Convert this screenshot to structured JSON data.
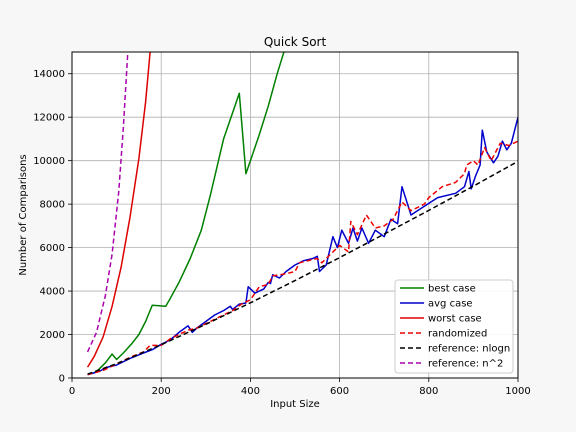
{
  "chart_data": {
    "type": "line",
    "title": "Quick Sort",
    "xlabel": "Input Size",
    "ylabel": "Number of Comparisons",
    "xlim": [
      0,
      1000
    ],
    "ylim": [
      0,
      15000
    ],
    "xticks": [
      0,
      200,
      400,
      600,
      800,
      1000
    ],
    "yticks": [
      0,
      2000,
      4000,
      6000,
      8000,
      10000,
      12000,
      14000
    ],
    "grid": true,
    "legend_position": "bottom-right",
    "series": [
      {
        "name": "best case",
        "color": "#008000",
        "dash": "solid",
        "points": [
          [
            35,
            150
          ],
          [
            50,
            250
          ],
          [
            60,
            400
          ],
          [
            75,
            700
          ],
          [
            90,
            1100
          ],
          [
            100,
            850
          ],
          [
            115,
            1150
          ],
          [
            135,
            1600
          ],
          [
            150,
            2000
          ],
          [
            165,
            2600
          ],
          [
            180,
            3350
          ],
          [
            210,
            3300
          ],
          [
            220,
            3650
          ],
          [
            240,
            4400
          ],
          [
            265,
            5500
          ],
          [
            290,
            6800
          ],
          [
            310,
            8400
          ],
          [
            340,
            11000
          ],
          [
            375,
            13100
          ],
          [
            390,
            9400
          ],
          [
            400,
            10000
          ],
          [
            420,
            11200
          ],
          [
            440,
            12500
          ],
          [
            460,
            14000
          ],
          [
            475,
            15000
          ]
        ]
      },
      {
        "name": "avg case",
        "color": "#0000cc",
        "dash": "solid",
        "points": [
          [
            35,
            150
          ],
          [
            60,
            300
          ],
          [
            80,
            500
          ],
          [
            100,
            600
          ],
          [
            130,
            900
          ],
          [
            160,
            1150
          ],
          [
            180,
            1300
          ],
          [
            200,
            1550
          ],
          [
            220,
            1750
          ],
          [
            240,
            2100
          ],
          [
            260,
            2400
          ],
          [
            270,
            2100
          ],
          [
            280,
            2300
          ],
          [
            300,
            2600
          ],
          [
            320,
            2900
          ],
          [
            340,
            3100
          ],
          [
            355,
            3300
          ],
          [
            360,
            3150
          ],
          [
            375,
            3400
          ],
          [
            390,
            3450
          ],
          [
            395,
            4200
          ],
          [
            410,
            3900
          ],
          [
            420,
            4000
          ],
          [
            430,
            4100
          ],
          [
            440,
            4400
          ],
          [
            445,
            4350
          ],
          [
            450,
            4750
          ],
          [
            465,
            4600
          ],
          [
            480,
            4900
          ],
          [
            500,
            5200
          ],
          [
            520,
            5400
          ],
          [
            540,
            5500
          ],
          [
            550,
            5600
          ],
          [
            555,
            4900
          ],
          [
            570,
            5200
          ],
          [
            585,
            6500
          ],
          [
            595,
            6000
          ],
          [
            605,
            6800
          ],
          [
            620,
            6200
          ],
          [
            630,
            6900
          ],
          [
            640,
            6300
          ],
          [
            650,
            6900
          ],
          [
            665,
            6200
          ],
          [
            680,
            6800
          ],
          [
            700,
            6500
          ],
          [
            715,
            7300
          ],
          [
            730,
            7100
          ],
          [
            740,
            8800
          ],
          [
            760,
            7500
          ],
          [
            790,
            7900
          ],
          [
            820,
            8300
          ],
          [
            860,
            8500
          ],
          [
            880,
            8800
          ],
          [
            890,
            9500
          ],
          [
            895,
            8700
          ],
          [
            905,
            9300
          ],
          [
            915,
            9800
          ],
          [
            920,
            11400
          ],
          [
            930,
            10400
          ],
          [
            945,
            9900
          ],
          [
            955,
            10200
          ],
          [
            965,
            10900
          ],
          [
            975,
            10500
          ],
          [
            985,
            10800
          ],
          [
            1000,
            12000
          ]
        ]
      },
      {
        "name": "worst case",
        "color": "#dd0000",
        "dash": "solid",
        "points": [
          [
            35,
            500
          ],
          [
            50,
            1000
          ],
          [
            70,
            1900
          ],
          [
            90,
            3300
          ],
          [
            110,
            5100
          ],
          [
            130,
            7400
          ],
          [
            150,
            10100
          ],
          [
            165,
            12700
          ],
          [
            175,
            15000
          ]
        ]
      },
      {
        "name": "randomized",
        "color": "#ee0000",
        "dash": "dashed",
        "points": [
          [
            35,
            160
          ],
          [
            70,
            350
          ],
          [
            100,
            650
          ],
          [
            130,
            950
          ],
          [
            160,
            1200
          ],
          [
            175,
            1500
          ],
          [
            200,
            1500
          ],
          [
            220,
            1800
          ],
          [
            260,
            2200
          ],
          [
            280,
            2300
          ],
          [
            300,
            2500
          ],
          [
            330,
            2800
          ],
          [
            360,
            3100
          ],
          [
            380,
            3400
          ],
          [
            400,
            3600
          ],
          [
            420,
            4200
          ],
          [
            440,
            4300
          ],
          [
            450,
            4700
          ],
          [
            480,
            4800
          ],
          [
            500,
            4900
          ],
          [
            510,
            5300
          ],
          [
            530,
            5400
          ],
          [
            550,
            5500
          ],
          [
            560,
            5300
          ],
          [
            580,
            5700
          ],
          [
            600,
            6100
          ],
          [
            620,
            5800
          ],
          [
            625,
            7200
          ],
          [
            640,
            6600
          ],
          [
            660,
            7500
          ],
          [
            680,
            6900
          ],
          [
            700,
            7000
          ],
          [
            720,
            7300
          ],
          [
            740,
            8100
          ],
          [
            760,
            7700
          ],
          [
            790,
            8000
          ],
          [
            800,
            8300
          ],
          [
            830,
            8800
          ],
          [
            860,
            9000
          ],
          [
            880,
            9400
          ],
          [
            885,
            9800
          ],
          [
            900,
            10000
          ],
          [
            910,
            9800
          ],
          [
            925,
            10600
          ],
          [
            940,
            10000
          ],
          [
            960,
            10800
          ],
          [
            980,
            10700
          ],
          [
            1000,
            10900
          ]
        ]
      },
      {
        "name": "reference: nlogn",
        "color": "#000000",
        "dash": "dashed",
        "points": [
          [
            35,
            180
          ],
          [
            100,
            660
          ],
          [
            200,
            1530
          ],
          [
            300,
            2470
          ],
          [
            400,
            3460
          ],
          [
            500,
            4480
          ],
          [
            600,
            5540
          ],
          [
            700,
            6620
          ],
          [
            800,
            7710
          ],
          [
            900,
            8830
          ],
          [
            1000,
            9970
          ]
        ]
      },
      {
        "name": "reference: n^2",
        "color": "#aa00aa",
        "dash": "dashed",
        "points": [
          [
            35,
            1200
          ],
          [
            55,
            2100
          ],
          [
            75,
            3800
          ],
          [
            90,
            5700
          ],
          [
            105,
            8600
          ],
          [
            115,
            11500
          ],
          [
            125,
            15000
          ]
        ]
      }
    ]
  }
}
